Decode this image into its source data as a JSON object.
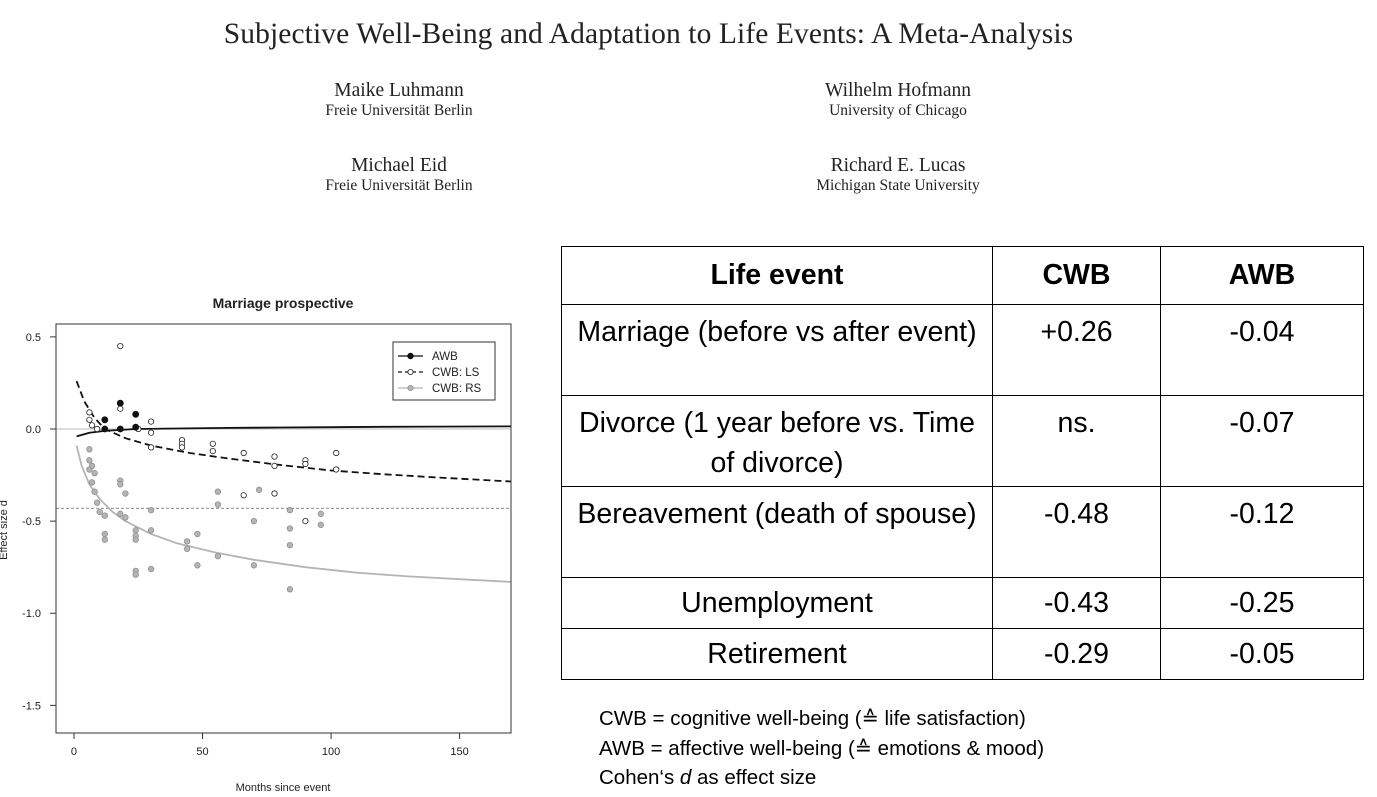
{
  "paper": {
    "title": "Subjective Well-Being and Adaptation to Life Events: A Meta-Analysis",
    "authors": [
      {
        "name": "Maike Luhmann",
        "affiliation": "Freie Universität Berlin"
      },
      {
        "name": "Wilhelm Hofmann",
        "affiliation": "University of Chicago"
      },
      {
        "name": "Michael Eid",
        "affiliation": "Freie Universität Berlin"
      },
      {
        "name": "Richard E. Lucas",
        "affiliation": "Michigan State University"
      }
    ]
  },
  "chart_data": {
    "type": "scatter",
    "title": "Marriage prospective",
    "xlabel": "Months since event",
    "ylabel": "Effect size d",
    "xlim": [
      -7,
      170
    ],
    "ylim": [
      -1.65,
      0.57
    ],
    "xticks": [
      0,
      50,
      100,
      150
    ],
    "yticks": [
      0.5,
      0.0,
      -0.5,
      -1.0,
      -1.5
    ],
    "ytick_labels": [
      "0.5",
      "0.0",
      "-0.5",
      "-1.0",
      "-1.5"
    ],
    "reference_line": -0.43,
    "legend": {
      "position": "top-right",
      "entries": [
        "AWB",
        "CWB: LS",
        "CWB: RS"
      ]
    },
    "series": [
      {
        "name": "AWB",
        "color": "#111111",
        "marker": "filled",
        "line": "solid",
        "points": [
          [
            12,
            0.05
          ],
          [
            12,
            0.0
          ],
          [
            18,
            0.14
          ],
          [
            24,
            0.08
          ],
          [
            24,
            0.01
          ],
          [
            18,
            0.0
          ]
        ],
        "curve": [
          [
            1,
            -0.04
          ],
          [
            6,
            -0.02
          ],
          [
            12,
            -0.01
          ],
          [
            24,
            0.0
          ],
          [
            40,
            0.003
          ],
          [
            60,
            0.006
          ],
          [
            80,
            0.008
          ],
          [
            100,
            0.01
          ],
          [
            120,
            0.012
          ],
          [
            140,
            0.013
          ],
          [
            170,
            0.014
          ]
        ]
      },
      {
        "name": "CWB: LS",
        "color": "#111111",
        "marker": "open",
        "line": "dashed",
        "points": [
          [
            6,
            0.09
          ],
          [
            6,
            0.05
          ],
          [
            7,
            0.02
          ],
          [
            9,
            0.0
          ],
          [
            18,
            0.45
          ],
          [
            18,
            0.11
          ],
          [
            18,
            0.0
          ],
          [
            25,
            0.0
          ],
          [
            30,
            0.04
          ],
          [
            30,
            -0.02
          ],
          [
            30,
            -0.1
          ],
          [
            42,
            -0.06
          ],
          [
            42,
            -0.08
          ],
          [
            42,
            -0.1
          ],
          [
            54,
            -0.08
          ],
          [
            54,
            -0.12
          ],
          [
            66,
            -0.13
          ],
          [
            66,
            -0.36
          ],
          [
            78,
            -0.15
          ],
          [
            78,
            -0.2
          ],
          [
            78,
            -0.35
          ],
          [
            90,
            -0.17
          ],
          [
            90,
            -0.19
          ],
          [
            90,
            -0.5
          ],
          [
            102,
            -0.13
          ],
          [
            102,
            -0.22
          ]
        ],
        "curve": [
          [
            1,
            0.26
          ],
          [
            4,
            0.15
          ],
          [
            8,
            0.06
          ],
          [
            12,
            0.0
          ],
          [
            20,
            -0.05
          ],
          [
            30,
            -0.09
          ],
          [
            45,
            -0.13
          ],
          [
            60,
            -0.16
          ],
          [
            80,
            -0.195
          ],
          [
            100,
            -0.225
          ],
          [
            120,
            -0.245
          ],
          [
            140,
            -0.262
          ],
          [
            170,
            -0.285
          ]
        ]
      },
      {
        "name": "CWB: RS",
        "color": "#aaaaaa",
        "marker": "filled",
        "line": "solid",
        "points": [
          [
            6,
            -0.11
          ],
          [
            6,
            -0.17
          ],
          [
            6,
            -0.22
          ],
          [
            7,
            -0.2
          ],
          [
            8,
            -0.24
          ],
          [
            7,
            -0.29
          ],
          [
            8,
            -0.34
          ],
          [
            9,
            -0.4
          ],
          [
            10,
            -0.45
          ],
          [
            12,
            -0.47
          ],
          [
            12,
            -0.57
          ],
          [
            12,
            -0.6
          ],
          [
            18,
            -0.28
          ],
          [
            18,
            -0.3
          ],
          [
            18,
            -0.46
          ],
          [
            20,
            -0.35
          ],
          [
            20,
            -0.48
          ],
          [
            24,
            -0.55
          ],
          [
            24,
            -0.58
          ],
          [
            24,
            -0.6
          ],
          [
            24,
            -0.77
          ],
          [
            24,
            -0.79
          ],
          [
            30,
            -0.44
          ],
          [
            30,
            -0.55
          ],
          [
            30,
            -0.76
          ],
          [
            44,
            -0.61
          ],
          [
            44,
            -0.65
          ],
          [
            48,
            -0.57
          ],
          [
            48,
            -0.74
          ],
          [
            56,
            -0.34
          ],
          [
            56,
            -0.41
          ],
          [
            56,
            -0.69
          ],
          [
            70,
            -0.5
          ],
          [
            70,
            -0.74
          ],
          [
            72,
            -0.33
          ],
          [
            84,
            -0.44
          ],
          [
            84,
            -0.54
          ],
          [
            84,
            -0.63
          ],
          [
            84,
            -0.87
          ],
          [
            96,
            -0.46
          ],
          [
            96,
            -0.52
          ]
        ],
        "curve": [
          [
            1,
            -0.09
          ],
          [
            3,
            -0.2
          ],
          [
            6,
            -0.3
          ],
          [
            10,
            -0.38
          ],
          [
            15,
            -0.45
          ],
          [
            20,
            -0.5
          ],
          [
            30,
            -0.57
          ],
          [
            40,
            -0.62
          ],
          [
            55,
            -0.67
          ],
          [
            70,
            -0.71
          ],
          [
            90,
            -0.75
          ],
          [
            110,
            -0.78
          ],
          [
            130,
            -0.8
          ],
          [
            150,
            -0.815
          ],
          [
            170,
            -0.83
          ]
        ]
      }
    ]
  },
  "table": {
    "headers": [
      "Life event",
      "CWB",
      "AWB"
    ],
    "rows": [
      [
        "Marriage (before vs after event)",
        "+0.26",
        "-0.04"
      ],
      [
        "Divorce (1 year before vs. Time of divorce)",
        "ns.",
        "-0.07"
      ],
      [
        "Bereavement (death of spouse)",
        "-0.48",
        "-0.12"
      ],
      [
        "Unemployment",
        "-0.43",
        "-0.25"
      ],
      [
        "Retirement",
        "-0.29",
        "-0.05"
      ]
    ]
  },
  "footnotes": {
    "cwb": "CWB = cognitive well-being (≙ life satisfaction)",
    "awb": "AWB = affective well-being (≙ emotions & mood)",
    "cohen_prefix": "Cohen‘s ",
    "cohen_d": "d",
    "cohen_suffix": " as effect size"
  }
}
